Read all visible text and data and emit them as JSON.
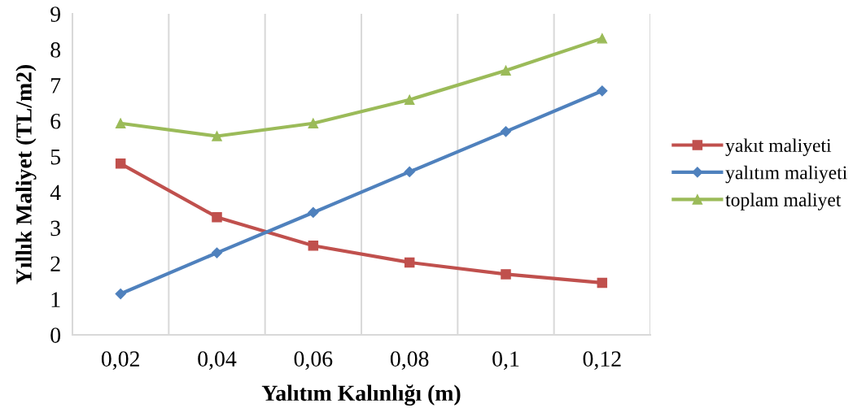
{
  "chart_data": {
    "type": "line",
    "xlabel": "Yalıtım Kalınlığı (m)",
    "ylabel": "Yıllık Maliyet (TL/m2)",
    "categories": [
      "0,02",
      "0,04",
      "0,06",
      "0,08",
      "0,1",
      "0,12"
    ],
    "series": [
      {
        "name": "yakıt maliyeti",
        "color": "#c0504d",
        "marker": "square",
        "values": [
          4.8,
          3.3,
          2.5,
          2.03,
          1.7,
          1.46
        ]
      },
      {
        "name": "yalıtım maliyeti",
        "color": "#4f81bd",
        "marker": "diamond",
        "values": [
          1.15,
          2.3,
          3.43,
          4.57,
          5.7,
          6.84
        ]
      },
      {
        "name": "toplam maliyet",
        "color": "#9bbb59",
        "marker": "triangle",
        "values": [
          5.93,
          5.57,
          5.93,
          6.59,
          7.41,
          8.31
        ]
      }
    ],
    "ylim": [
      0,
      9
    ],
    "yticks": [
      0,
      1,
      2,
      3,
      4,
      5,
      6,
      7,
      8,
      9
    ],
    "grid": "x",
    "legend": "right",
    "line_style": "solid"
  }
}
